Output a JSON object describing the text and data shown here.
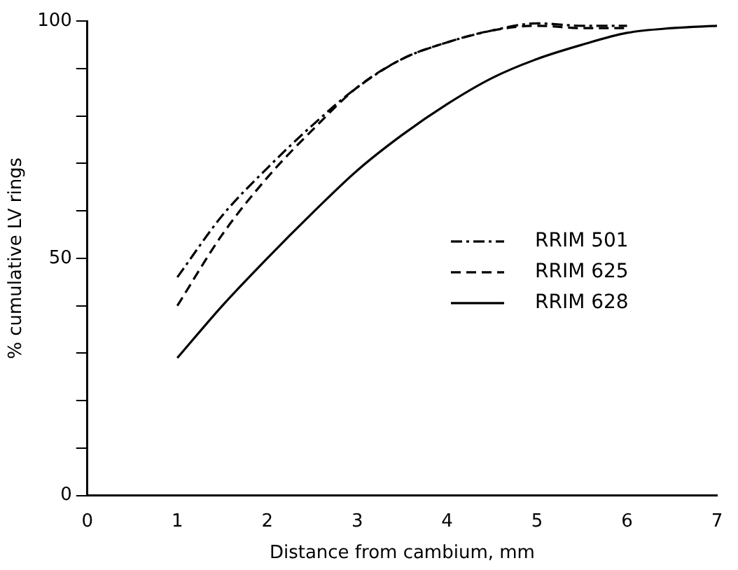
{
  "chart_data": {
    "type": "line",
    "xlabel": "Distance from cambium, mm",
    "ylabel": "% cumulative LV rings",
    "xlim": [
      0,
      7
    ],
    "xticks": [
      0,
      1,
      2,
      3,
      4,
      5,
      6,
      7
    ],
    "ylim": [
      0,
      100
    ],
    "yticks": [
      0,
      {
        "value": 10,
        "label": null
      },
      {
        "value": 20,
        "label": null
      },
      {
        "value": 30,
        "label": null
      },
      {
        "value": 40,
        "label": null
      },
      50,
      {
        "value": 60,
        "label": null
      },
      {
        "value": 70,
        "label": null
      },
      {
        "value": 80,
        "label": null
      },
      {
        "value": 90,
        "label": null
      },
      100
    ],
    "grid": false,
    "legend": "right",
    "marker": "none",
    "series": [
      {
        "name": "RRIM 501",
        "color": "#000000",
        "line_style": "dashdot",
        "x": [
          1,
          1.5,
          2,
          2.5,
          3,
          3.5,
          4,
          4.5,
          5,
          5.5,
          6
        ],
        "values": [
          46,
          59,
          69,
          78,
          86,
          92,
          95.5,
          98,
          99.5,
          99,
          99
        ]
      },
      {
        "name": "RRIM 625",
        "color": "#000000",
        "line_style": "dashed",
        "x": [
          1,
          1.5,
          2,
          2.5,
          3,
          3.5,
          4,
          4.5,
          5,
          5.5,
          6
        ],
        "values": [
          40,
          55,
          67,
          77,
          86,
          92,
          95.5,
          98,
          99,
          98.5,
          98.5
        ]
      },
      {
        "name": "RRIM 628",
        "color": "#000000",
        "line_style": "solid",
        "x": [
          1,
          1.5,
          2,
          2.5,
          3,
          3.5,
          4,
          4.5,
          5,
          5.5,
          6,
          6.5,
          7
        ],
        "values": [
          29,
          40,
          50,
          59.5,
          68.5,
          76,
          82.5,
          88,
          92,
          95,
          97.5,
          98.5,
          99
        ]
      }
    ]
  }
}
